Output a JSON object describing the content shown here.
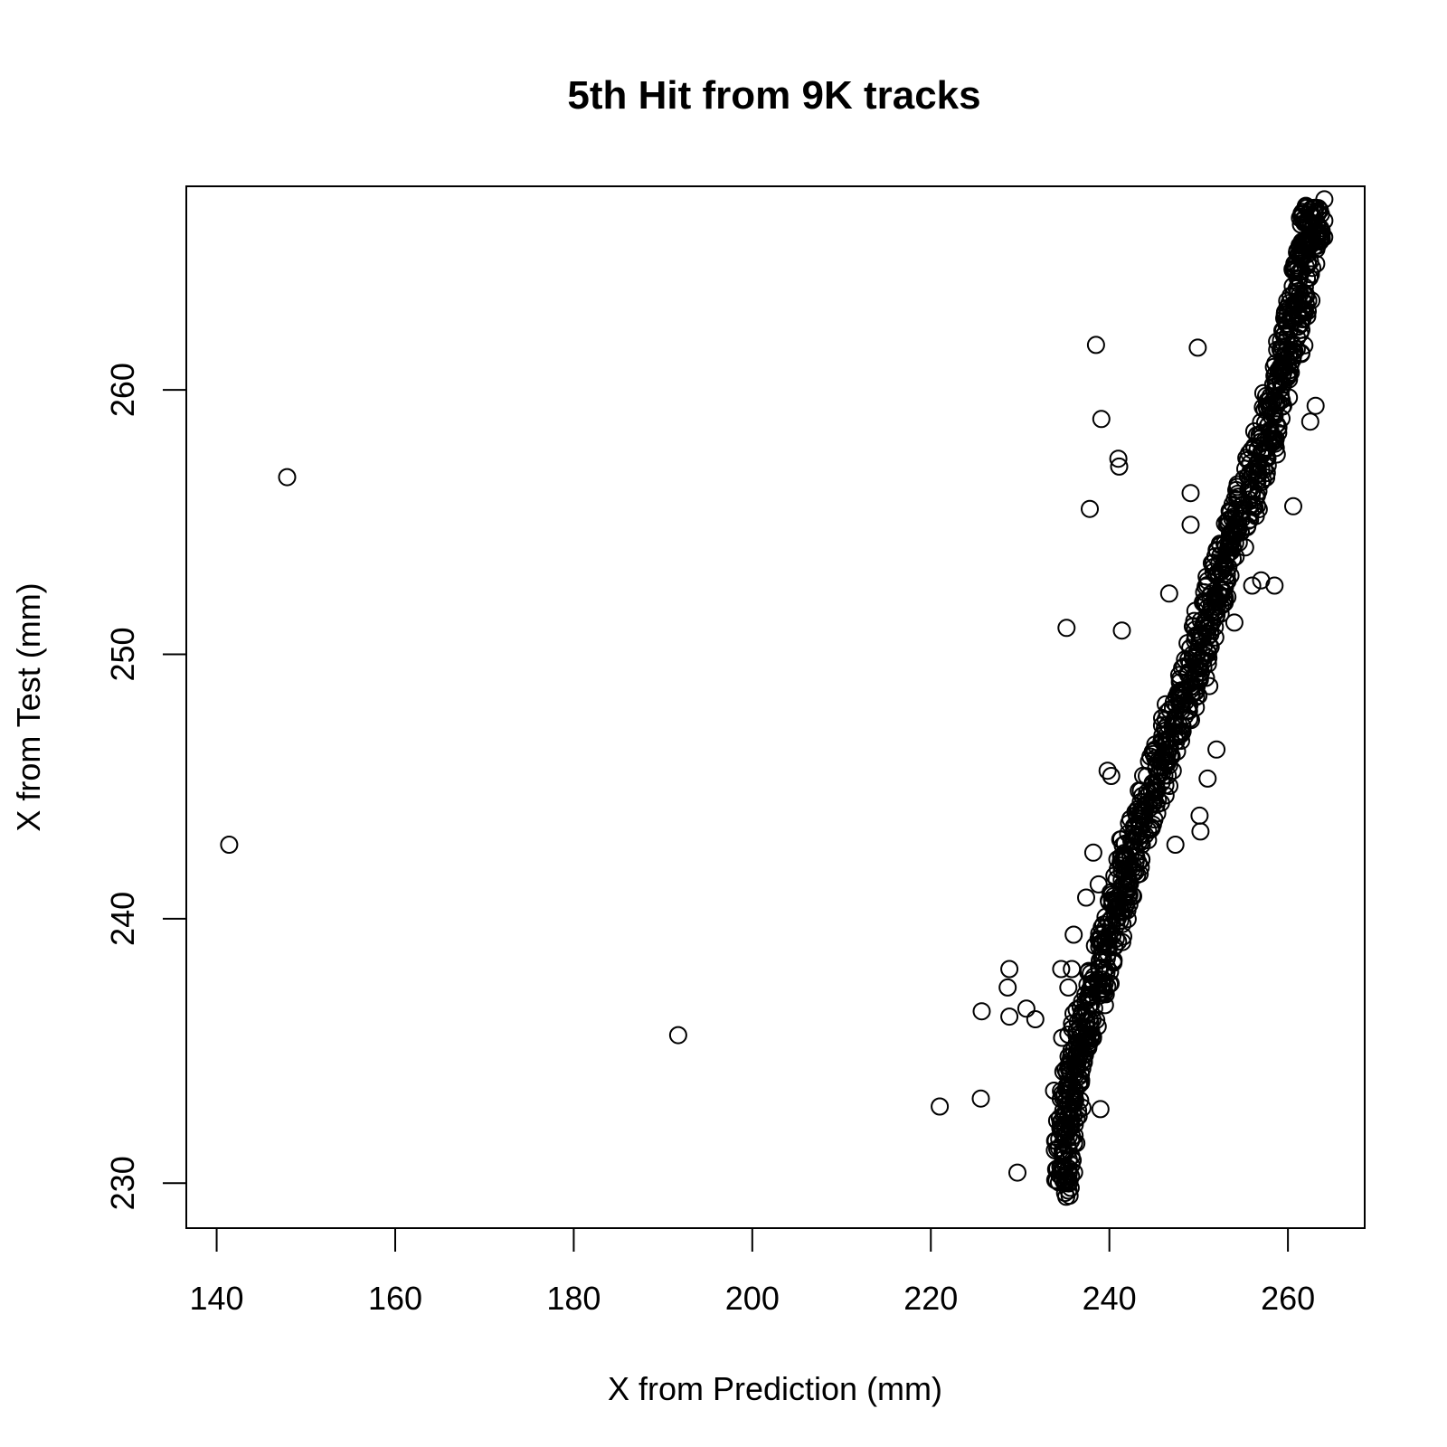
{
  "chart_data": {
    "type": "scatter",
    "title": "5th Hit from 9K tracks",
    "xlabel": "X from Prediction (mm)",
    "ylabel": "X from Test (mm)",
    "xlim": [
      136.6,
      268.6
    ],
    "ylim": [
      228.3,
      267.7
    ],
    "xticks": [
      140,
      160,
      180,
      200,
      220,
      240,
      260
    ],
    "yticks": [
      230,
      240,
      250,
      260
    ],
    "grid": false,
    "legend": "none",
    "marker": "open-circle",
    "main_band": {
      "description_points": [
        [
          234.8,
          229.8
        ],
        [
          235.2,
          232.0
        ],
        [
          236.0,
          234.0
        ],
        [
          237.2,
          236.0
        ],
        [
          239.0,
          238.0
        ],
        [
          240.5,
          240.0
        ],
        [
          242.0,
          242.0
        ],
        [
          244.0,
          244.0
        ],
        [
          246.0,
          246.0
        ],
        [
          248.0,
          248.0
        ],
        [
          250.0,
          250.0
        ],
        [
          251.5,
          252.0
        ],
        [
          253.0,
          254.0
        ],
        [
          255.5,
          256.0
        ],
        [
          257.5,
          258.0
        ],
        [
          259.0,
          260.0
        ],
        [
          260.5,
          262.0
        ],
        [
          261.5,
          264.0
        ],
        [
          262.5,
          266.0
        ],
        [
          263.0,
          266.5
        ]
      ]
    },
    "points": [
      [
        141.4,
        242.8
      ],
      [
        147.9,
        256.7
      ],
      [
        191.7,
        235.6
      ],
      [
        221.0,
        232.9
      ],
      [
        225.6,
        233.2
      ],
      [
        225.7,
        236.5
      ],
      [
        228.6,
        237.4
      ],
      [
        228.8,
        238.1
      ],
      [
        228.8,
        236.3
      ],
      [
        229.7,
        230.4
      ],
      [
        230.7,
        236.6
      ],
      [
        231.7,
        236.2
      ],
      [
        233.8,
        233.5
      ],
      [
        234.6,
        238.1
      ],
      [
        234.7,
        235.5
      ],
      [
        234.8,
        230.9
      ],
      [
        234.9,
        230.6
      ],
      [
        235.0,
        230.3
      ],
      [
        235.0,
        230.0
      ],
      [
        235.2,
        251.0
      ],
      [
        235.4,
        237.4
      ],
      [
        235.8,
        238.1
      ],
      [
        236.0,
        239.4
      ],
      [
        236.1,
        231.8
      ],
      [
        237.4,
        240.8
      ],
      [
        237.8,
        255.5
      ],
      [
        238.2,
        242.5
      ],
      [
        238.5,
        261.7
      ],
      [
        238.8,
        241.3
      ],
      [
        239.0,
        232.8
      ],
      [
        239.1,
        258.9
      ],
      [
        239.8,
        245.6
      ],
      [
        240.2,
        245.4
      ],
      [
        241.0,
        257.4
      ],
      [
        241.1,
        257.1
      ],
      [
        241.4,
        250.9
      ],
      [
        243.4,
        241.7
      ],
      [
        243.6,
        243.9
      ],
      [
        246.7,
        252.3
      ],
      [
        247.1,
        245.6
      ],
      [
        247.4,
        242.8
      ],
      [
        249.1,
        256.1
      ],
      [
        249.1,
        254.9
      ],
      [
        249.9,
        261.6
      ],
      [
        250.1,
        243.9
      ],
      [
        250.2,
        243.3
      ],
      [
        251.0,
        245.3
      ],
      [
        251.2,
        248.8
      ],
      [
        252.0,
        246.4
      ],
      [
        253.4,
        255.1
      ],
      [
        254.0,
        251.2
      ],
      [
        256.0,
        252.6
      ],
      [
        257.0,
        252.8
      ],
      [
        258.5,
        252.6
      ],
      [
        259.8,
        262.5
      ],
      [
        260.6,
        255.6
      ],
      [
        261.3,
        264.2
      ],
      [
        262.5,
        258.8
      ],
      [
        263.1,
        259.4
      ]
    ]
  }
}
